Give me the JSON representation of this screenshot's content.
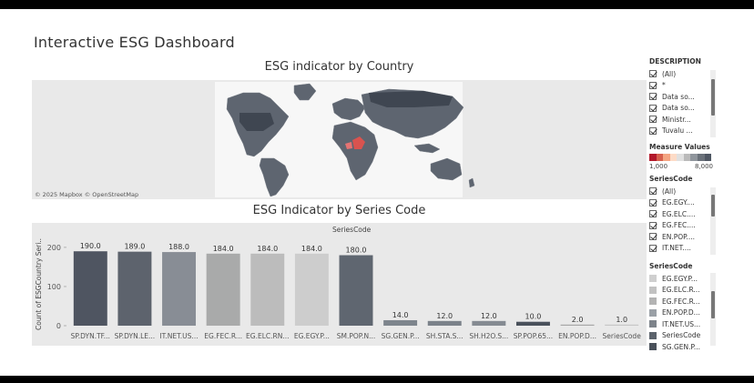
{
  "dashboard": {
    "title": "Interactive ESG Dashboard"
  },
  "map": {
    "title": "ESG indicator by Country",
    "attribution": "© 2025 Mapbox © OpenStreetMap"
  },
  "bar": {
    "title": "ESG Indicator by Series Code",
    "column_header": "SeriesCode"
  },
  "description_filter": {
    "title": "DESCRIPTION",
    "items": [
      "(All)",
      "*",
      "Data so...",
      "Data so...",
      "Ministr...",
      "Tuvalu ..."
    ]
  },
  "measure_legend": {
    "title": "Measure Values",
    "min_label": "1,000",
    "max_label": "8,000",
    "colors": [
      "#b2182b",
      "#d6604d",
      "#f4a582",
      "#fddbc7",
      "#e0e0e0",
      "#bababa",
      "#8f959c",
      "#6a717a",
      "#4f5763"
    ]
  },
  "series_filter": {
    "title": "SeriesCode",
    "items": [
      "(All)",
      "EG.EGY....",
      "EG.ELC....",
      "EG.FEC....",
      "EN.POP....",
      "IT.NET...."
    ]
  },
  "series_legend": {
    "title": "SeriesCode",
    "items": [
      {
        "label": "EG.EGY.P...",
        "color": "#cfcfcf"
      },
      {
        "label": "EG.ELC.R...",
        "color": "#c2c2c2"
      },
      {
        "label": "EG.FEC.R...",
        "color": "#b3b3b3"
      },
      {
        "label": "EN.POP.D...",
        "color": "#9aa0a6"
      },
      {
        "label": "IT.NET.US...",
        "color": "#7d838a"
      },
      {
        "label": "SeriesCode",
        "color": "#5c636c"
      },
      {
        "label": "SG.GEN.P...",
        "color": "#4a515b"
      }
    ]
  },
  "chart_data": {
    "type": "bar",
    "title": "ESG Indicator by Series Code",
    "xlabel": "",
    "ylabel": "Count of ESGCountry Seri..",
    "ylim": [
      0,
      230
    ],
    "yticks": [
      0,
      100,
      200
    ],
    "categories": [
      "SP.DYN.TF...",
      "SP.DYN.LE...",
      "IT.NET.US...",
      "EG.FEC.R...",
      "EG.ELC.RN...",
      "EG.EGY.P...",
      "SM.POP.N...",
      "SG.GEN.P...",
      "SH.STA.S...",
      "SH.H2O.S...",
      "SP.POP.65...",
      "EN.POP.D...",
      "SeriesCode"
    ],
    "values": [
      190,
      189,
      188,
      184,
      184,
      184,
      180,
      14,
      12,
      12,
      10,
      2,
      1
    ],
    "value_labels": [
      "190.0",
      "189.0",
      "188.0",
      "184.0",
      "184.0",
      "184.0",
      "180.0",
      "14.0",
      "12.0",
      "12.0",
      "10.0",
      "2.0",
      "1.0"
    ],
    "colors": [
      "#4f5561",
      "#5d636d",
      "#888d95",
      "#a9aaaa",
      "#bcbcbc",
      "#cdcdcd",
      "#5f6670",
      "#7e858d",
      "#7b828a",
      "#858b92",
      "#4a515b",
      "#a6a6a6",
      "#c6c6c6"
    ],
    "grid": false,
    "legend": "right"
  }
}
